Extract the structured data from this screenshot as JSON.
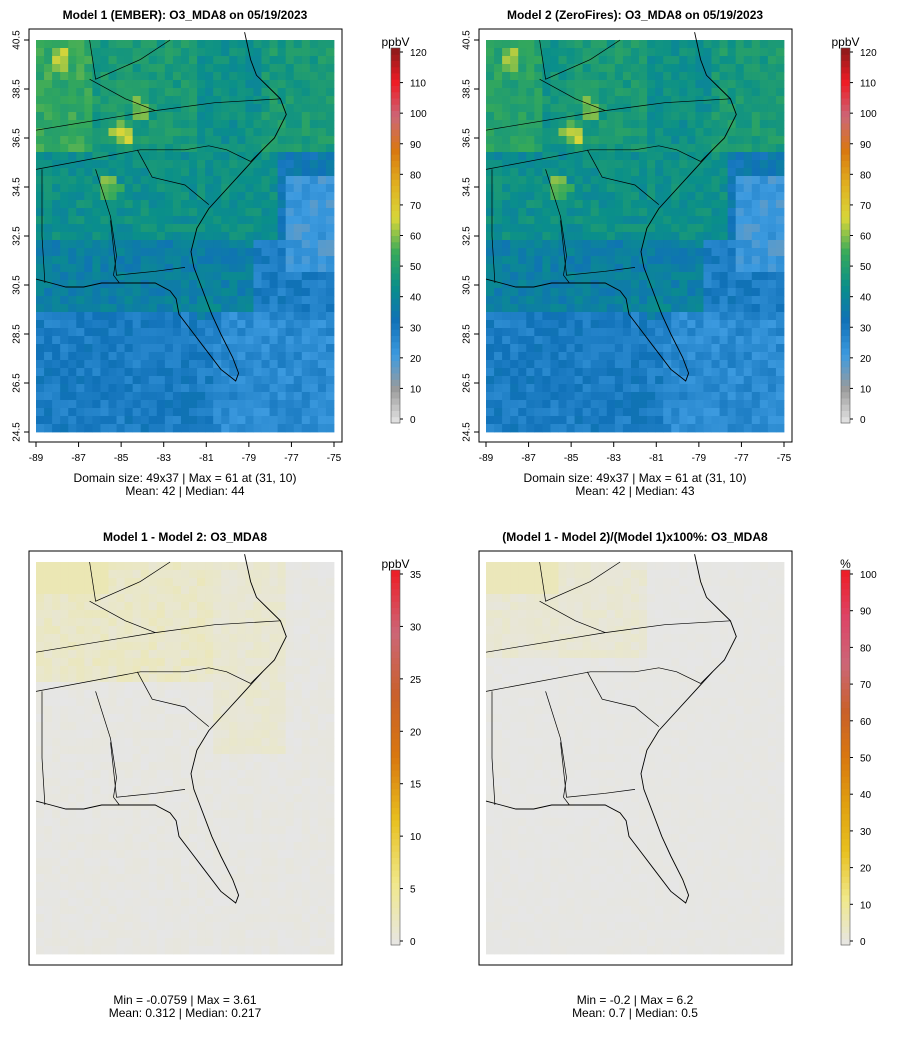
{
  "panels": [
    {
      "title": "Model 1 (EMBER): O3_MDA8 on 05/19/2023",
      "stats": [
        "Domain size: 49x37 | Max = 61 at (31, 10)",
        "Mean: 42 |  Median: 44"
      ],
      "show_axes": true
    },
    {
      "title": "Model 2 (ZeroFires): O3_MDA8 on 05/19/2023",
      "stats": [
        "Domain size: 49x37 | Max = 61 at (31, 10)",
        "Mean: 42 |  Median: 43"
      ],
      "show_axes": true
    },
    {
      "title": "Model 1 - Model 2: O3_MDA8",
      "stats": [
        "Min = -0.0759 | Max = 3.61",
        "Mean: 0.312 |  Median: 0.217"
      ],
      "show_axes": false
    },
    {
      "title": "(Model 1 - Model 2)/(Model 1)x100%: O3_MDA8",
      "stats": [
        "Min = -0.2 | Max = 6.2",
        "Mean: 0.7 |  Median: 0.5"
      ],
      "show_axes": false
    }
  ],
  "chart_data": [
    {
      "type": "heatmap",
      "title": "Model 1 (EMBER): O3_MDA8 on 05/19/2023",
      "x_ticks": [
        -89,
        -87,
        -85,
        -83,
        -81,
        -79,
        -77,
        -75
      ],
      "y_ticks": [
        24.5,
        26.5,
        28.5,
        30.5,
        32.5,
        34.5,
        36.5,
        38.5,
        40.5
      ],
      "xlim": [
        -89,
        -75
      ],
      "ylim": [
        24.5,
        40.5
      ],
      "colorbar": {
        "label": "ppbV",
        "ticks": [
          0,
          10,
          20,
          30,
          40,
          50,
          60,
          70,
          80,
          90,
          100,
          110,
          120
        ],
        "range": [
          0,
          120
        ]
      },
      "colors": [
        "#e6e6e6",
        "#9b9b9b",
        "#3d9be0",
        "#1071b8",
        "#0a8f8a",
        "#35a95a",
        "#d8d63a",
        "#e0b020",
        "#d9780f",
        "#cc6677",
        "#ee1c25",
        "#8b1a1a"
      ]
    },
    {
      "type": "heatmap",
      "title": "Model 2 (ZeroFires): O3_MDA8 on 05/19/2023",
      "x_ticks": [
        -89,
        -87,
        -85,
        -83,
        -81,
        -79,
        -77,
        -75
      ],
      "y_ticks": [
        24.5,
        26.5,
        28.5,
        30.5,
        32.5,
        34.5,
        36.5,
        38.5,
        40.5
      ],
      "xlim": [
        -89,
        -75
      ],
      "ylim": [
        24.5,
        40.5
      ],
      "colorbar": {
        "label": "ppbV",
        "ticks": [
          0,
          10,
          20,
          30,
          40,
          50,
          60,
          70,
          80,
          90,
          100,
          110,
          120
        ],
        "range": [
          0,
          120
        ]
      },
      "colors": [
        "#e6e6e6",
        "#9b9b9b",
        "#3d9be0",
        "#1071b8",
        "#0a8f8a",
        "#35a95a",
        "#d8d63a",
        "#e0b020",
        "#d9780f",
        "#cc6677",
        "#ee1c25",
        "#8b1a1a"
      ]
    },
    {
      "type": "heatmap",
      "title": "Model 1 - Model 2: O3_MDA8",
      "colorbar": {
        "label": "ppbV",
        "ticks": [
          0,
          5,
          10,
          15,
          20,
          25,
          30,
          35
        ],
        "range": [
          0,
          35
        ]
      },
      "colors": [
        "#e6e6e6",
        "#f0e88a",
        "#e8c020",
        "#d9780f",
        "#c9602a",
        "#cc6677",
        "#ee1c25"
      ]
    },
    {
      "type": "heatmap",
      "title": "(Model 1 - Model 2)/(Model 1)x100%: O3_MDA8",
      "colorbar": {
        "label": "%",
        "ticks": [
          0,
          10,
          20,
          30,
          40,
          50,
          60,
          70,
          80,
          90,
          100
        ],
        "range": [
          0,
          100
        ]
      },
      "colors": [
        "#e6e6e6",
        "#f0e88a",
        "#e8c020",
        "#e0a010",
        "#d9780f",
        "#c9602a",
        "#cc6677",
        "#dd4466",
        "#ee1c25"
      ]
    }
  ]
}
